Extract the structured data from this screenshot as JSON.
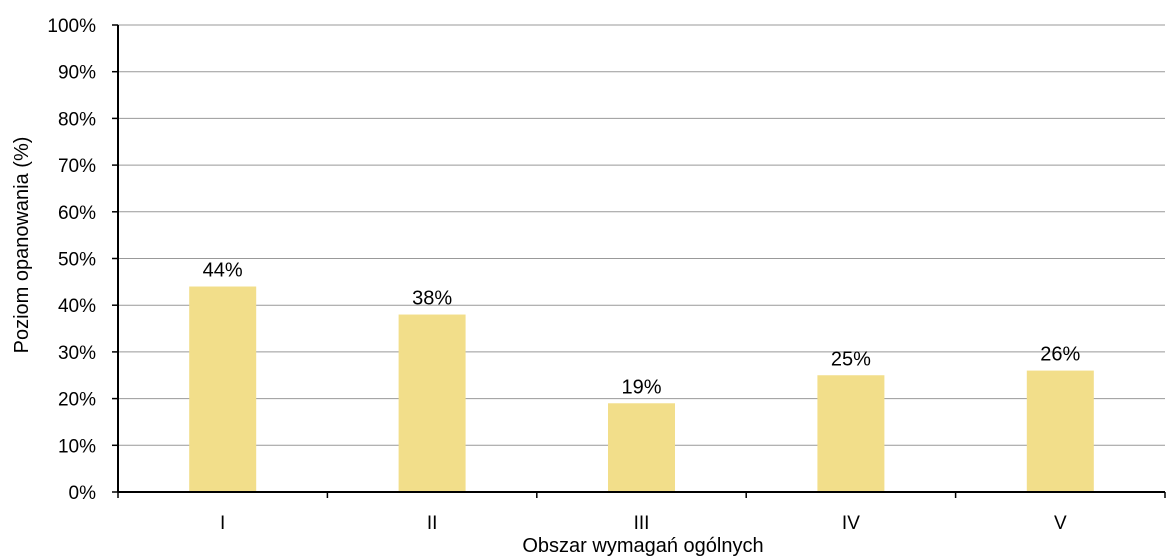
{
  "chart_data": {
    "type": "bar",
    "categories": [
      "I",
      "II",
      "III",
      "IV",
      "V"
    ],
    "values": [
      44,
      38,
      19,
      25,
      26
    ],
    "value_labels": [
      "44%",
      "38%",
      "19%",
      "25%",
      "26%"
    ],
    "xlabel": "Obszar wymagań ogólnych",
    "ylabel": "Poziom opanowania (%)",
    "ylim": [
      0,
      100
    ],
    "y_ticks": [
      0,
      10,
      20,
      30,
      40,
      50,
      60,
      70,
      80,
      90,
      100
    ],
    "y_tick_labels": [
      "0%",
      "10%",
      "20%",
      "30%",
      "40%",
      "50%",
      "60%",
      "70%",
      "80%",
      "90%",
      "100%"
    ],
    "grid": true,
    "bar_color": "#F2DE8A",
    "grid_color": "#999999",
    "axis_color": "#000000"
  }
}
